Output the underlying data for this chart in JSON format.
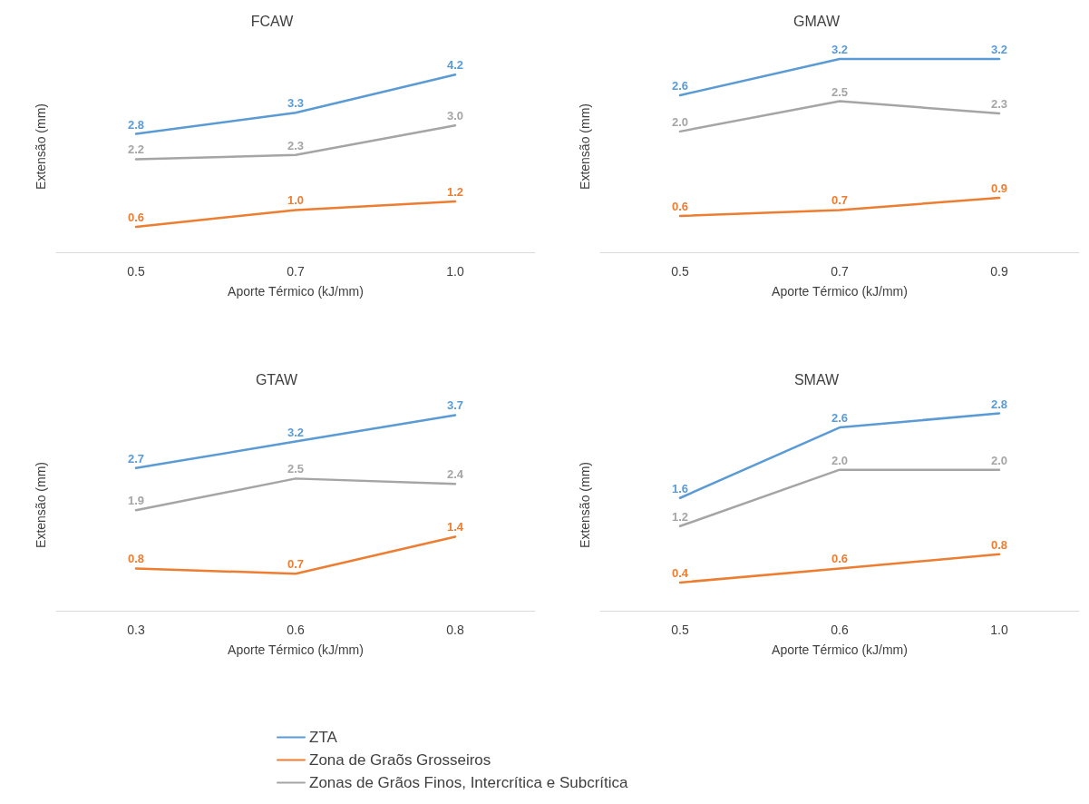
{
  "chart_data": [
    {
      "type": "line",
      "title": "FCAW",
      "xlabel": "Aporte Térmico (kJ/mm)",
      "ylabel": "Extensão (mm)",
      "categories": [
        "0.5",
        "0.7",
        "1.0"
      ],
      "grid": false,
      "legend": false,
      "series": [
        {
          "color": "#5b9bd5",
          "values": [
            2.8,
            3.3,
            4.2
          ],
          "value_labels": [
            "2.8",
            "3.3",
            "4.2"
          ]
        },
        {
          "color": "#ed7d31",
          "values": [
            0.6,
            1.0,
            1.2
          ],
          "value_labels": [
            "0.6",
            "1.0",
            "1.2"
          ]
        },
        {
          "color": "#a5a5a5",
          "values": [
            2.2,
            2.3,
            3.0
          ],
          "value_labels": [
            "2.2",
            "2.3",
            "3.0"
          ]
        }
      ]
    },
    {
      "type": "line",
      "title": "GMAW",
      "xlabel": "Aporte Térmico (kJ/mm)",
      "ylabel": "Extensão (mm)",
      "categories": [
        "0.5",
        "0.7",
        "0.9"
      ],
      "grid": false,
      "legend": false,
      "series": [
        {
          "color": "#5b9bd5",
          "values": [
            2.6,
            3.2,
            3.2
          ],
          "value_labels": [
            "2.6",
            "3.2",
            "3.2"
          ]
        },
        {
          "color": "#ed7d31",
          "values": [
            0.6,
            0.7,
            0.9
          ],
          "value_labels": [
            "0.6",
            "0.7",
            "0.9"
          ]
        },
        {
          "color": "#a5a5a5",
          "values": [
            2.0,
            2.5,
            2.3
          ],
          "value_labels": [
            "2.0",
            "2.5",
            "2.3"
          ]
        }
      ]
    },
    {
      "type": "line",
      "title": "GTAW",
      "xlabel": "Aporte Térmico (kJ/mm)",
      "ylabel": "Extensão (mm)",
      "categories": [
        "0.3",
        "0.6",
        "0.8"
      ],
      "grid": false,
      "legend": "bottom",
      "series": [
        {
          "name": "ZTA",
          "color": "#5b9bd5",
          "values": [
            2.7,
            3.2,
            3.7
          ],
          "value_labels": [
            "2.7",
            "3.2",
            "3.7"
          ]
        },
        {
          "name": "Zona de Graõs Grosseiros",
          "color": "#ed7d31",
          "values": [
            0.8,
            0.7,
            1.4
          ],
          "value_labels": [
            "0.8",
            "0.7",
            "1.4"
          ]
        },
        {
          "name": "Zonas de Grãos Finos, Intercrítica e Subcrítica",
          "color": "#a5a5a5",
          "values": [
            1.9,
            2.5,
            2.4
          ],
          "value_labels": [
            "1.9",
            "2.5",
            "2.4"
          ]
        }
      ]
    },
    {
      "type": "line",
      "title": "SMAW",
      "xlabel": "Aporte Térmico (kJ/mm)",
      "ylabel": "Extensão (mm)",
      "categories": [
        "0.5",
        "0.6",
        "1.0"
      ],
      "grid": false,
      "legend": false,
      "series": [
        {
          "color": "#5b9bd5",
          "values": [
            1.6,
            2.6,
            2.8
          ],
          "value_labels": [
            "1.6",
            "2.6",
            "2.8"
          ]
        },
        {
          "color": "#ed7d31",
          "values": [
            0.4,
            0.6,
            0.8
          ],
          "value_labels": [
            "0.4",
            "0.6",
            "0.8"
          ]
        },
        {
          "color": "#a5a5a5",
          "values": [
            1.2,
            2.0,
            2.0
          ],
          "value_labels": [
            "1.2",
            "2.0",
            "2.0"
          ]
        }
      ]
    }
  ]
}
